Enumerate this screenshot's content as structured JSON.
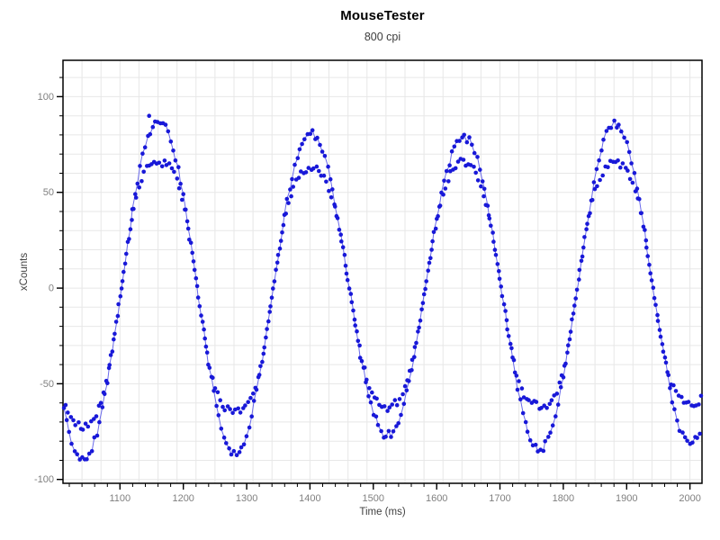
{
  "chart_data": {
    "type": "scatter",
    "title": "MouseTester",
    "subtitle": "800 cpi",
    "xlabel": "Time (ms)",
    "ylabel": "xCounts",
    "x_range": [
      1010,
      2019
    ],
    "y_range": [
      -102,
      119
    ],
    "x_ticks_major": [
      1100,
      1200,
      1300,
      1400,
      1500,
      1600,
      1700,
      1800,
      1900,
      2000
    ],
    "x_tick_minor_step": 20,
    "y_ticks_major": [
      -100,
      -50,
      0,
      50,
      100
    ],
    "y_tick_minor_step": 10,
    "grid": {
      "x_step": 30,
      "x_anchor": 1010,
      "y_step": 10,
      "color": "#e7e7e7"
    },
    "axis_color": "#000000",
    "tick_label_color": "#808080",
    "series": {
      "name": "xCounts",
      "model": "sine",
      "period_ms": 240,
      "rising_zero_ms": 1102,
      "sample_interval_ms": 2,
      "extremes": [
        {
          "t": 1042,
          "outer": -90,
          "inner": -72
        },
        {
          "t": 1162,
          "outer": 88,
          "inner": 66
        },
        {
          "t": 1282,
          "outer": -87,
          "inner": -65
        },
        {
          "t": 1402,
          "outer": 81,
          "inner": 63
        },
        {
          "t": 1522,
          "outer": -77,
          "inner": -62
        },
        {
          "t": 1642,
          "outer": 79,
          "inner": 66
        },
        {
          "t": 1762,
          "outer": -84,
          "inner": -61
        },
        {
          "t": 1882,
          "outer": 86,
          "inner": 65
        },
        {
          "t": 2002,
          "outer": -81,
          "inner": -60
        }
      ],
      "outliers": [
        [
          1146,
          90
        ]
      ],
      "point_color": "#1818d8",
      "line_color": "#5a5ae8"
    }
  }
}
